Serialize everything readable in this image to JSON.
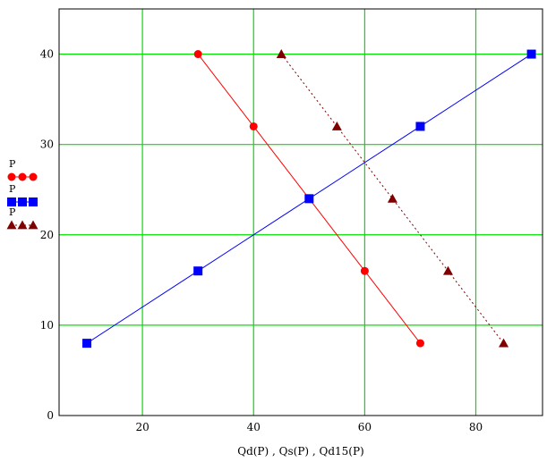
{
  "chart_data": {
    "type": "line",
    "xlabel": "Qd(P) , Qs(P) , Qd15(P)",
    "ylabel": "P",
    "xlim": [
      5,
      92
    ],
    "ylim": [
      0,
      45
    ],
    "x_ticks": [
      20,
      40,
      60,
      80
    ],
    "y_ticks": [
      0,
      10,
      20,
      30,
      40
    ],
    "grid": true,
    "grid_color": "#00e000",
    "legend_placement": "left",
    "series": [
      {
        "name": "P",
        "color": "#ff0000",
        "marker": "circle",
        "line": "solid",
        "points": [
          [
            30,
            40
          ],
          [
            40,
            32
          ],
          [
            50,
            24
          ],
          [
            60,
            16
          ],
          [
            70,
            8
          ]
        ]
      },
      {
        "name": "P",
        "color": "#0000ff",
        "marker": "square",
        "line": "solid",
        "points": [
          [
            10,
            8
          ],
          [
            30,
            16
          ],
          [
            50,
            24
          ],
          [
            70,
            32
          ],
          [
            90,
            40
          ]
        ]
      },
      {
        "name": "P",
        "color": "#800000",
        "marker": "triangle",
        "line": "dotted",
        "points": [
          [
            45,
            40
          ],
          [
            55,
            32
          ],
          [
            65,
            24
          ],
          [
            75,
            16
          ],
          [
            85,
            8
          ]
        ]
      }
    ]
  }
}
